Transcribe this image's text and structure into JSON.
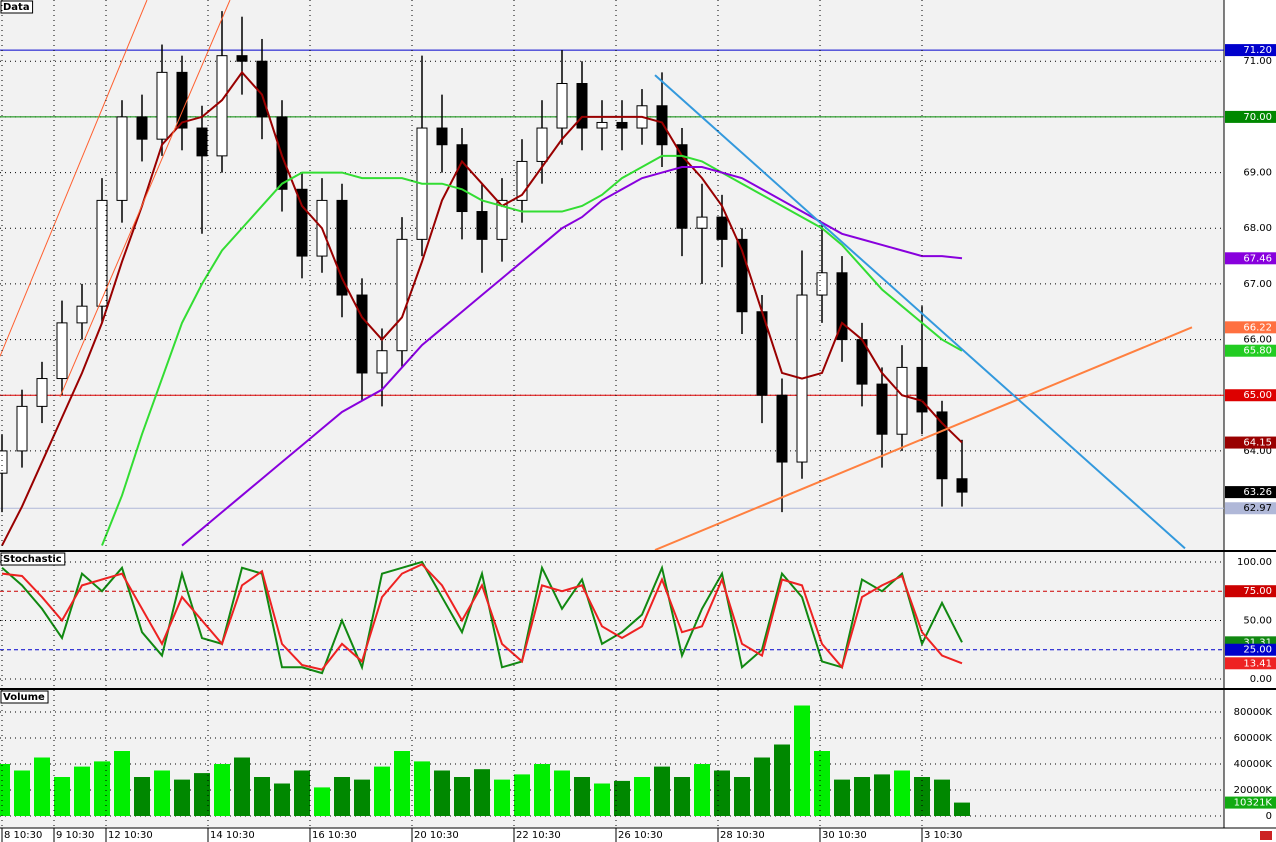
{
  "chart_data": [
    {
      "type": "candlestick",
      "title": "Data",
      "xlim": [
        -0.1,
        61.1
      ],
      "ylim": [
        62.22,
        72.1
      ],
      "yticks": [
        {
          "value": 64,
          "label": "64.00"
        },
        {
          "value": 65,
          "label": "65.00"
        },
        {
          "value": 66,
          "label": "66.00"
        },
        {
          "value": 67,
          "label": "67.00"
        },
        {
          "value": 68,
          "label": "68.00"
        },
        {
          "value": 69,
          "label": "69.00"
        },
        {
          "value": 70,
          "label": "70.00"
        },
        {
          "value": 71,
          "label": "71.00"
        }
      ],
      "open": [
        63.6,
        64.0,
        64.8,
        65.3,
        66.3,
        66.6,
        68.5,
        70.0,
        69.6,
        70.8,
        69.8,
        69.3,
        71.1,
        71.0,
        70.0,
        68.7,
        67.5,
        68.5,
        66.8,
        65.4,
        65.8,
        67.8,
        69.8,
        69.5,
        68.3,
        67.8,
        68.5,
        69.2,
        69.8,
        70.6,
        69.8,
        69.9,
        69.8,
        70.2,
        69.5,
        68.0,
        68.2,
        67.8,
        66.5,
        65.0,
        63.8,
        66.8,
        67.2,
        66.0,
        65.2,
        64.3,
        65.5,
        64.7,
        63.5
      ],
      "high": [
        64.3,
        65.1,
        65.6,
        66.7,
        67.0,
        68.9,
        70.3,
        70.4,
        71.3,
        71.1,
        70.2,
        71.9,
        71.8,
        71.4,
        70.3,
        69.0,
        68.9,
        68.8,
        67.1,
        66.2,
        68.2,
        71.1,
        70.4,
        69.8,
        68.8,
        68.9,
        69.6,
        70.3,
        71.2,
        71.0,
        70.3,
        70.3,
        70.5,
        70.8,
        69.8,
        68.8,
        68.6,
        68.0,
        66.8,
        65.3,
        67.6,
        68.1,
        67.5,
        66.3,
        65.5,
        65.9,
        66.6,
        64.9,
        64.2
      ],
      "low": [
        62.9,
        63.7,
        64.5,
        65.0,
        66.0,
        66.3,
        68.1,
        69.2,
        69.3,
        69.4,
        67.9,
        69.0,
        70.4,
        69.6,
        68.3,
        67.1,
        67.2,
        66.4,
        64.9,
        64.8,
        65.5,
        67.5,
        69.0,
        67.8,
        67.2,
        67.4,
        68.1,
        68.8,
        69.5,
        69.4,
        69.4,
        69.4,
        69.5,
        69.1,
        67.5,
        67.0,
        67.3,
        66.1,
        64.5,
        62.9,
        63.5,
        66.3,
        65.6,
        64.8,
        63.7,
        64.0,
        64.3,
        63.0,
        63.0
      ],
      "close": [
        64.0,
        64.8,
        65.3,
        66.3,
        66.6,
        68.5,
        70.0,
        69.6,
        70.8,
        69.8,
        69.3,
        71.1,
        71.0,
        70.0,
        68.7,
        67.5,
        68.5,
        66.8,
        65.4,
        65.8,
        67.8,
        69.8,
        69.5,
        68.3,
        67.8,
        68.5,
        69.2,
        69.8,
        70.6,
        69.8,
        69.9,
        69.8,
        70.2,
        69.5,
        68.0,
        68.2,
        67.8,
        66.5,
        65.0,
        63.8,
        66.8,
        67.2,
        66.0,
        65.2,
        64.3,
        65.5,
        64.7,
        63.5,
        63.26
      ],
      "series": [
        {
          "color": "#990000",
          "values": [
            62.3,
            63.0,
            63.8,
            64.6,
            65.4,
            66.3,
            67.4,
            68.4,
            69.5,
            69.9,
            70.0,
            70.3,
            70.8,
            70.4,
            69.3,
            68.4,
            68.0,
            67.1,
            66.4,
            66.0,
            66.4,
            67.4,
            68.5,
            69.2,
            68.8,
            68.4,
            68.6,
            69.1,
            69.6,
            70.0,
            70.0,
            70.0,
            70.0,
            69.9,
            69.3,
            68.9,
            68.4,
            67.6,
            66.5,
            65.4,
            65.3,
            65.4,
            66.3,
            66.0,
            65.4,
            65.0,
            64.9,
            64.5,
            64.15
          ]
        },
        {
          "color": "#33dd33",
          "values": [
            null,
            null,
            null,
            null,
            null,
            62.3,
            63.2,
            64.3,
            65.3,
            66.3,
            67.0,
            67.6,
            68.0,
            68.4,
            68.8,
            69.0,
            69.0,
            69.0,
            68.9,
            68.9,
            68.9,
            68.8,
            68.8,
            68.7,
            68.5,
            68.4,
            68.3,
            68.3,
            68.3,
            68.4,
            68.6,
            68.9,
            69.1,
            69.3,
            69.3,
            69.2,
            69.0,
            68.8,
            68.6,
            68.4,
            68.2,
            68.0,
            67.7,
            67.3,
            66.9,
            66.6,
            66.3,
            66.0,
            65.8
          ]
        },
        {
          "color": "#8800dd",
          "values": [
            null,
            null,
            null,
            null,
            null,
            null,
            null,
            null,
            null,
            62.3,
            62.6,
            62.9,
            63.2,
            63.5,
            63.8,
            64.1,
            64.4,
            64.7,
            64.9,
            65.1,
            65.5,
            65.9,
            66.2,
            66.5,
            66.8,
            67.1,
            67.4,
            67.7,
            68.0,
            68.2,
            68.5,
            68.7,
            68.9,
            69.0,
            69.1,
            69.1,
            69.0,
            68.9,
            68.7,
            68.5,
            68.3,
            68.1,
            67.9,
            67.8,
            67.7,
            67.6,
            67.5,
            67.5,
            67.46
          ]
        }
      ],
      "trend_lines": [
        {
          "color": "#ff8040",
          "x": [
            32.65,
            59.5
          ],
          "y": [
            62.22,
            66.22
          ]
        },
        {
          "color": "#3399dd",
          "x": [
            32.65,
            59.15
          ],
          "y": [
            70.75,
            62.25
          ]
        },
        {
          "color": "#ff6030",
          "x": [
            -0.1,
            7.25
          ],
          "y": [
            65.7,
            72.1
          ]
        },
        {
          "color": "#ff6030",
          "x": [
            2.9,
            11.4
          ],
          "y": [
            64.97,
            72.1
          ]
        }
      ],
      "markers": [
        {
          "value": 71.2,
          "label": "71.20",
          "color": "#0000cc",
          "line": "solid"
        },
        {
          "value": 70,
          "label": "70.00",
          "color": "#008800",
          "line": "solid"
        },
        {
          "value": 67.46,
          "label": "67.46",
          "color": "#8800dd"
        },
        {
          "value": 66.22,
          "label": "66.22",
          "color": "#ff7040"
        },
        {
          "value": 65.8,
          "label": "65.80",
          "color": "#22cc22"
        },
        {
          "value": 65,
          "label": "65.00",
          "color": "#dd0000",
          "line": "solid"
        },
        {
          "value": 64.15,
          "label": "64.15",
          "color": "#990000"
        },
        {
          "value": 63.26,
          "label": "63.26",
          "color": "#000000"
        },
        {
          "value": 62.97,
          "label": "62.97",
          "color": "#b0b8d8",
          "line": "solid"
        }
      ]
    },
    {
      "type": "line",
      "title": "Stochastic",
      "xlim": [
        -0.1,
        61.1
      ],
      "ylim": [
        -7.7,
        108.5
      ],
      "yticks": [
        {
          "value": 0,
          "label": "0.00"
        },
        {
          "value": 50,
          "label": "50.00"
        },
        {
          "value": 100,
          "label": "100.00"
        }
      ],
      "series": [
        {
          "color": "#118811",
          "values": [
            95,
            80,
            60,
            35,
            90,
            75,
            95,
            40,
            20,
            90,
            35,
            30,
            95,
            90,
            10,
            10,
            5,
            50,
            10,
            90,
            95,
            100,
            70,
            40,
            90,
            10,
            15,
            95,
            60,
            85,
            30,
            40,
            55,
            95,
            20,
            60,
            90,
            10,
            25,
            90,
            70,
            15,
            10,
            85,
            75,
            90,
            30,
            65,
            31.31
          ]
        },
        {
          "color": "#ee2222",
          "values": [
            90,
            88,
            70,
            50,
            80,
            85,
            90,
            60,
            30,
            70,
            50,
            30,
            80,
            92,
            30,
            12,
            8,
            30,
            15,
            70,
            90,
            98,
            80,
            50,
            80,
            30,
            15,
            80,
            75,
            80,
            45,
            35,
            45,
            85,
            40,
            45,
            85,
            30,
            20,
            85,
            80,
            30,
            10,
            70,
            80,
            88,
            40,
            20,
            13.41
          ]
        }
      ],
      "markers": [
        {
          "value": 75,
          "label": "75.00",
          "color": "#cc0000",
          "line": "dashed"
        },
        {
          "value": 31.31,
          "label": "31.31",
          "color": "#118811"
        },
        {
          "value": 25,
          "label": "25.00",
          "color": "#0000cc",
          "line": "dashed"
        },
        {
          "value": 13.41,
          "label": "13.41",
          "color": "#ee2222"
        }
      ]
    },
    {
      "type": "bar",
      "title": "Volume",
      "xlim": [
        -0.1,
        61.1
      ],
      "ylim": [
        -9231,
        96923
      ],
      "yticks": [
        0,
        {
          "value": 20000,
          "label": "20000K"
        },
        {
          "value": 40000,
          "label": "40000K"
        },
        {
          "value": 60000,
          "label": "60000K"
        },
        {
          "value": 80000,
          "label": "80000K"
        }
      ],
      "xticks": [
        {
          "value": 0,
          "label": "8 10:30"
        },
        {
          "value": 2.6,
          "label": "9 10:30"
        },
        {
          "value": 5.2,
          "label": "12 10:30"
        },
        {
          "value": 10.3,
          "label": "14 10:30"
        },
        {
          "value": 15.4,
          "label": "16 10:30"
        },
        {
          "value": 20.5,
          "label": "20 10:30"
        },
        {
          "value": 25.6,
          "label": "22 10:30"
        },
        {
          "value": 30.7,
          "label": "26 10:30"
        },
        {
          "value": 35.8,
          "label": "28 10:30"
        },
        {
          "value": 40.9,
          "label": "30 10:30"
        },
        {
          "value": 46,
          "label": "3 10:30"
        }
      ],
      "values": [
        40000,
        35000,
        45000,
        30000,
        38000,
        42000,
        50000,
        30000,
        35000,
        28000,
        33000,
        40000,
        45000,
        30000,
        25000,
        35000,
        22000,
        30000,
        28000,
        38000,
        50000,
        42000,
        35000,
        30000,
        36000,
        28000,
        32000,
        40000,
        35000,
        30000,
        25000,
        27000,
        30000,
        38000,
        30000,
        40000,
        35000,
        30000,
        45000,
        55000,
        85000,
        50000,
        28000,
        30000,
        32000,
        35000,
        30000,
        28000,
        10321
      ],
      "color_up": "#00ee00",
      "color_down": "#008800",
      "markers": [
        {
          "value": 10321,
          "label": "10321K",
          "color": "#11aa11"
        }
      ]
    }
  ]
}
